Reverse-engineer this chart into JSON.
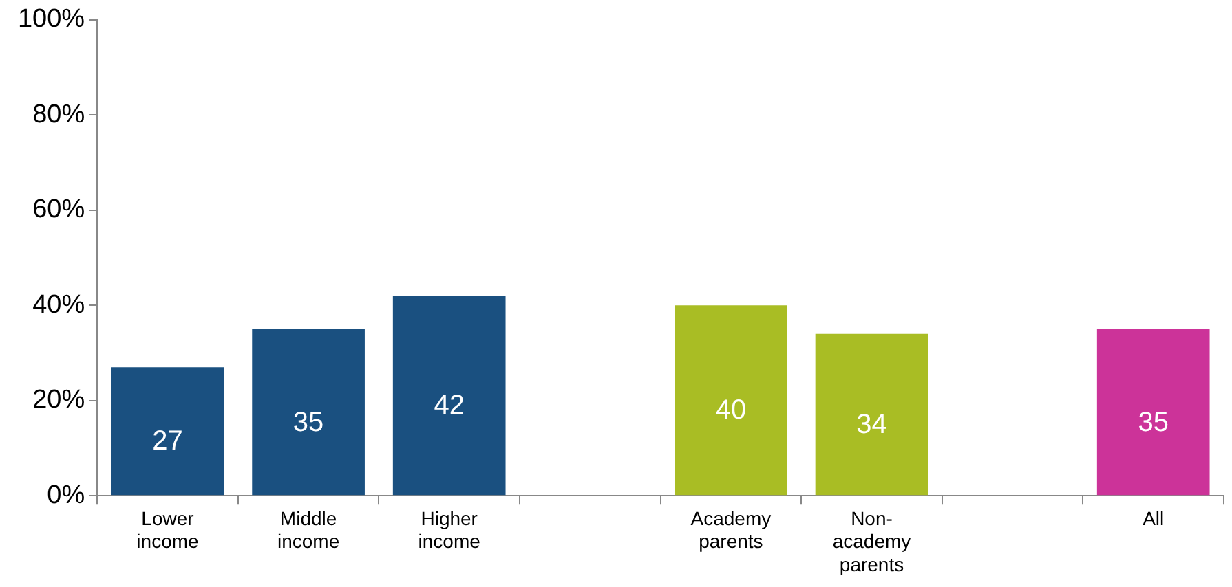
{
  "chart_data": {
    "type": "bar",
    "categories": [
      "Lower income",
      "Middle income",
      "Higher income",
      null,
      "Academy parents",
      "Non-academy parents",
      null,
      "All"
    ],
    "values": [
      27,
      35,
      42,
      null,
      40,
      34,
      null,
      35
    ],
    "colors": [
      "#1a5080",
      "#1a5080",
      "#1a5080",
      null,
      "#a9bd24",
      "#a9bd24",
      null,
      "#cc3399"
    ],
    "ylim": [
      0,
      100
    ],
    "yticks": [
      {
        "value": 0,
        "label": "0%"
      },
      {
        "value": 20,
        "label": "20%"
      },
      {
        "value": 40,
        "label": "40%"
      },
      {
        "value": 60,
        "label": "60%"
      },
      {
        "value": 80,
        "label": "80%"
      },
      {
        "value": 100,
        "label": "100%"
      }
    ],
    "data_labels": true,
    "legend": false
  }
}
